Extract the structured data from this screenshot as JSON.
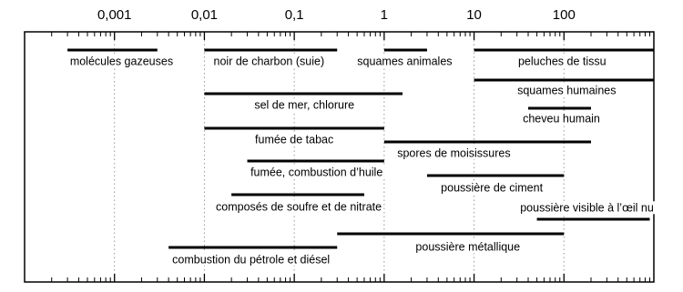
{
  "chart_data": {
    "type": "range",
    "log_x": true,
    "grid": true,
    "color": "#000000",
    "xlim": [
      0.0001,
      1000
    ],
    "xticks": [
      {
        "value": 0.001,
        "label": "0,001"
      },
      {
        "value": 0.01,
        "label": "0,01"
      },
      {
        "value": 0.1,
        "label": "0,1"
      },
      1,
      10,
      100
    ],
    "categories": [
      "molécules gazeuses",
      "noir de charbon (suie)",
      "squames animales",
      "peluches de tissu",
      "squames humaines",
      "sel de mer, chlorure",
      "cheveu humain",
      "fumée de tabac",
      "spores de moisissures",
      "fumée, combustion d’huile",
      "poussière de ciment",
      "composés de soufre et de nitrate",
      "poussière visible à l’œil nu",
      "poussière métallique",
      "combustion du pétrole et diésel"
    ],
    "low": [
      0.0003,
      0.01,
      1,
      10,
      10,
      0.01,
      40,
      0.01,
      1,
      0.03,
      3,
      0.02,
      50,
      0.3,
      0.004
    ],
    "high": [
      0.003,
      0.3,
      3,
      1000,
      1000,
      1.6,
      200,
      1,
      200,
      1,
      100,
      0.6,
      900,
      100,
      0.3
    ]
  }
}
